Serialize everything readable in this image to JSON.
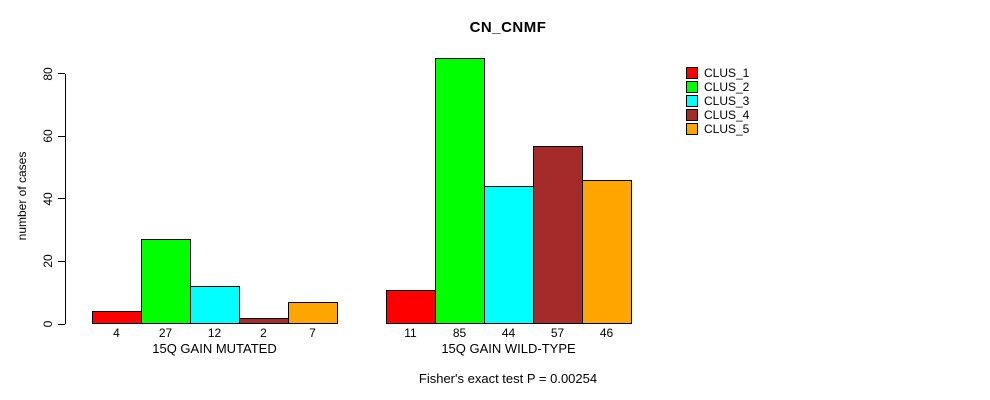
{
  "chart_data": {
    "type": "bar",
    "title": "CN_CNMF",
    "ylabel": "number of cases",
    "xlabel": "",
    "ylim": [
      0,
      80
    ],
    "yticks": [
      0,
      20,
      40,
      60,
      80
    ],
    "categories": [
      "15Q GAIN MUTATED",
      "15Q GAIN WILD-TYPE"
    ],
    "series": [
      {
        "name": "CLUS_1",
        "color": "#FF0000",
        "values": [
          4,
          11
        ]
      },
      {
        "name": "CLUS_2",
        "color": "#00FF00",
        "values": [
          27,
          85
        ]
      },
      {
        "name": "CLUS_3",
        "color": "#00FFFF",
        "values": [
          12,
          44
        ]
      },
      {
        "name": "CLUS_4",
        "color": "#A52A2A",
        "values": [
          2,
          57
        ]
      },
      {
        "name": "CLUS_5",
        "color": "#FFA500",
        "values": [
          7,
          46
        ]
      }
    ],
    "bar_value_labels": true,
    "legend_position": "top-right-outside",
    "grid": false,
    "annotation": "Fisher's exact test P = 0.00254",
    "background": "#FFFFFF",
    "bar_border_color": "#000000"
  }
}
